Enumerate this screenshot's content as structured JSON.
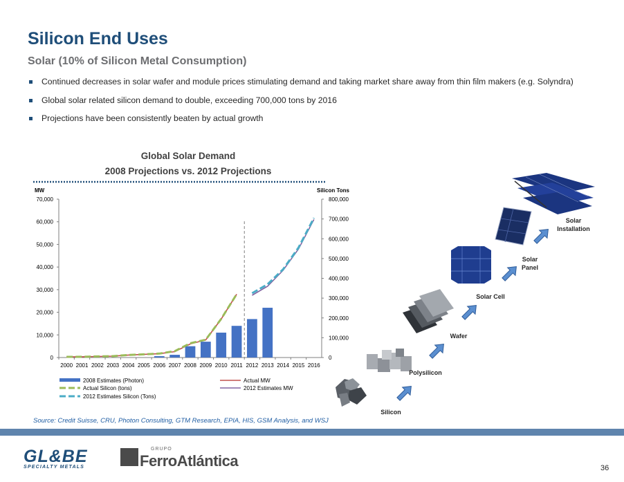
{
  "slide": {
    "title": "Silicon End Uses",
    "subtitle": "Solar (10% of Silicon Metal Consumption)",
    "bullets": [
      "Continued decreases in solar wafer and module prices stimulating demand and taking market share away from thin film makers (e.g. Solyndra)",
      "Global solar related silicon demand to double, exceeding 700,000 tons by 2016",
      "Projections have been consistently beaten by actual growth"
    ],
    "source": "Source: Credit Suisse, CRU, Photon Consulting, GTM Research, EPIA, HIS, GSM Analysis, and WSJ",
    "page_number": "36",
    "accent_color": "#1f4e79",
    "footer_bar_color": "#5f84ad"
  },
  "chart_data": {
    "type": "bar",
    "title": "Global Solar Demand",
    "subtitle": "2008 Projections vs. 2012 Projections",
    "left_axis_label": "MW",
    "right_axis_label": "Silicon  Tons",
    "categories": [
      "2000",
      "2001",
      "2002",
      "2003",
      "2004",
      "2005",
      "2006",
      "2007",
      "2008",
      "2009",
      "2010",
      "2011",
      "2012",
      "2013",
      "2014",
      "2015",
      "2016"
    ],
    "left_ylim": [
      0,
      70000
    ],
    "left_ticks": [
      "0",
      "10,000",
      "20,000",
      "30,000",
      "40,000",
      "50,000",
      "60,000",
      "70,000"
    ],
    "right_ylim": [
      0,
      800000
    ],
    "right_ticks": [
      "0",
      "100,000",
      "200,000",
      "300,000",
      "400,000",
      "500,000",
      "600,000",
      "700,000",
      "800,000"
    ],
    "series": [
      {
        "name": "2008 Estimates (Photon)",
        "kind": "bar",
        "axis": "left",
        "color": "#4472c4",
        "values": [
          null,
          null,
          null,
          null,
          null,
          null,
          600,
          1200,
          5000,
          7000,
          11000,
          14000,
          17000,
          22000,
          null,
          null,
          null
        ]
      },
      {
        "name": "Actual MW",
        "kind": "line",
        "axis": "left",
        "color": "#c0504d",
        "values": [
          280,
          330,
          450,
          600,
          1100,
          1400,
          1700,
          2600,
          6000,
          7800,
          17000,
          28000,
          null,
          null,
          null,
          null,
          null
        ]
      },
      {
        "name": "Actual Silicon (tons)",
        "kind": "dash",
        "axis": "right",
        "color": "#9bbb59",
        "values": [
          3500,
          4000,
          5500,
          7000,
          13000,
          16000,
          20000,
          32000,
          72000,
          90000,
          195000,
          320000,
          null,
          null,
          null,
          null,
          null
        ]
      },
      {
        "name": "2012 Estimates MW",
        "kind": "line",
        "axis": "left",
        "color": "#8064a2",
        "values": [
          null,
          null,
          null,
          null,
          null,
          null,
          null,
          null,
          null,
          null,
          null,
          null,
          27500,
          31500,
          38500,
          48000,
          61000
        ]
      },
      {
        "name": "2012 Estimates Silicon (Tons)",
        "kind": "dash",
        "axis": "right",
        "color": "#4bacc6",
        "values": [
          null,
          null,
          null,
          null,
          null,
          null,
          null,
          null,
          null,
          null,
          null,
          null,
          325000,
          370000,
          445000,
          555000,
          705000
        ]
      }
    ],
    "divider_after": "2011",
    "legend_position": "bottom",
    "grid": false
  },
  "value_chain": [
    "Silicon",
    "Polysilicon",
    "Wafer",
    "Solar Cell",
    "Solar Panel",
    "Solar Installation"
  ],
  "logos": {
    "globe": {
      "word": "GL&BE",
      "tagline": "SPECIALTY METALS"
    },
    "ferroatlantica": {
      "grupo": "GRUPO",
      "name": "FerroAtlántica"
    }
  }
}
